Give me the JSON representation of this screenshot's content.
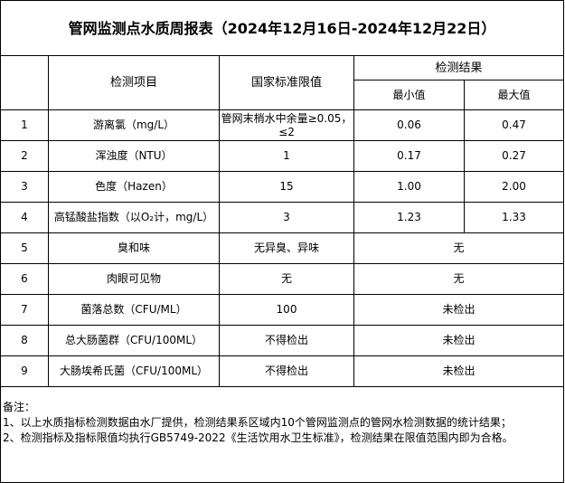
{
  "title": "管网监测点水质周报表（2024年12月16日-2024年12月22日）",
  "headers": {
    "item": "检测项目",
    "standard": "国家标准限值",
    "result": "检测结果",
    "min": "最小值",
    "max": "最大值"
  },
  "rows": [
    {
      "no": "1",
      "item": "游离氯（mg/L）",
      "standard": "管网末梢水中余量≥0.05，≤2",
      "min": "0.06",
      "max": "0.47"
    },
    {
      "no": "2",
      "item": "浑浊度（NTU）",
      "standard": "1",
      "min": "0.17",
      "max": "0.27"
    },
    {
      "no": "3",
      "item": "色度（Hazen）",
      "standard": "15",
      "min": "1.00",
      "max": "2.00"
    },
    {
      "no": "4",
      "item": "高锰酸盐指数（以O₂计，mg/L）",
      "standard": "3",
      "min": "1.23",
      "max": "1.33"
    },
    {
      "no": "5",
      "item": "臭和味",
      "standard": "无异臭、异味",
      "result": "无"
    },
    {
      "no": "6",
      "item": "肉眼可见物",
      "standard": "无",
      "result": "无"
    },
    {
      "no": "7",
      "item": "菌落总数（CFU/ML）",
      "standard": "100",
      "result": "未检出"
    },
    {
      "no": "8",
      "item": "总大肠菌群（CFU/100ML）",
      "standard": "不得检出",
      "result": "未检出"
    },
    {
      "no": "9",
      "item": "大肠埃希氏菌（CFU/100ML）",
      "standard": "不得检出",
      "result": "未检出"
    }
  ],
  "notes": {
    "label": "备注：",
    "line1": "1、以上水质指标检测数据由水厂提供，检测结果系区域内10个管网监测点的管网水检测数据的统计结果；",
    "line2": "2、检测指标及指标限值均执行GB5749-2022《生活饮用水卫生标准》，检测结果在限值范围内即为合格。"
  }
}
